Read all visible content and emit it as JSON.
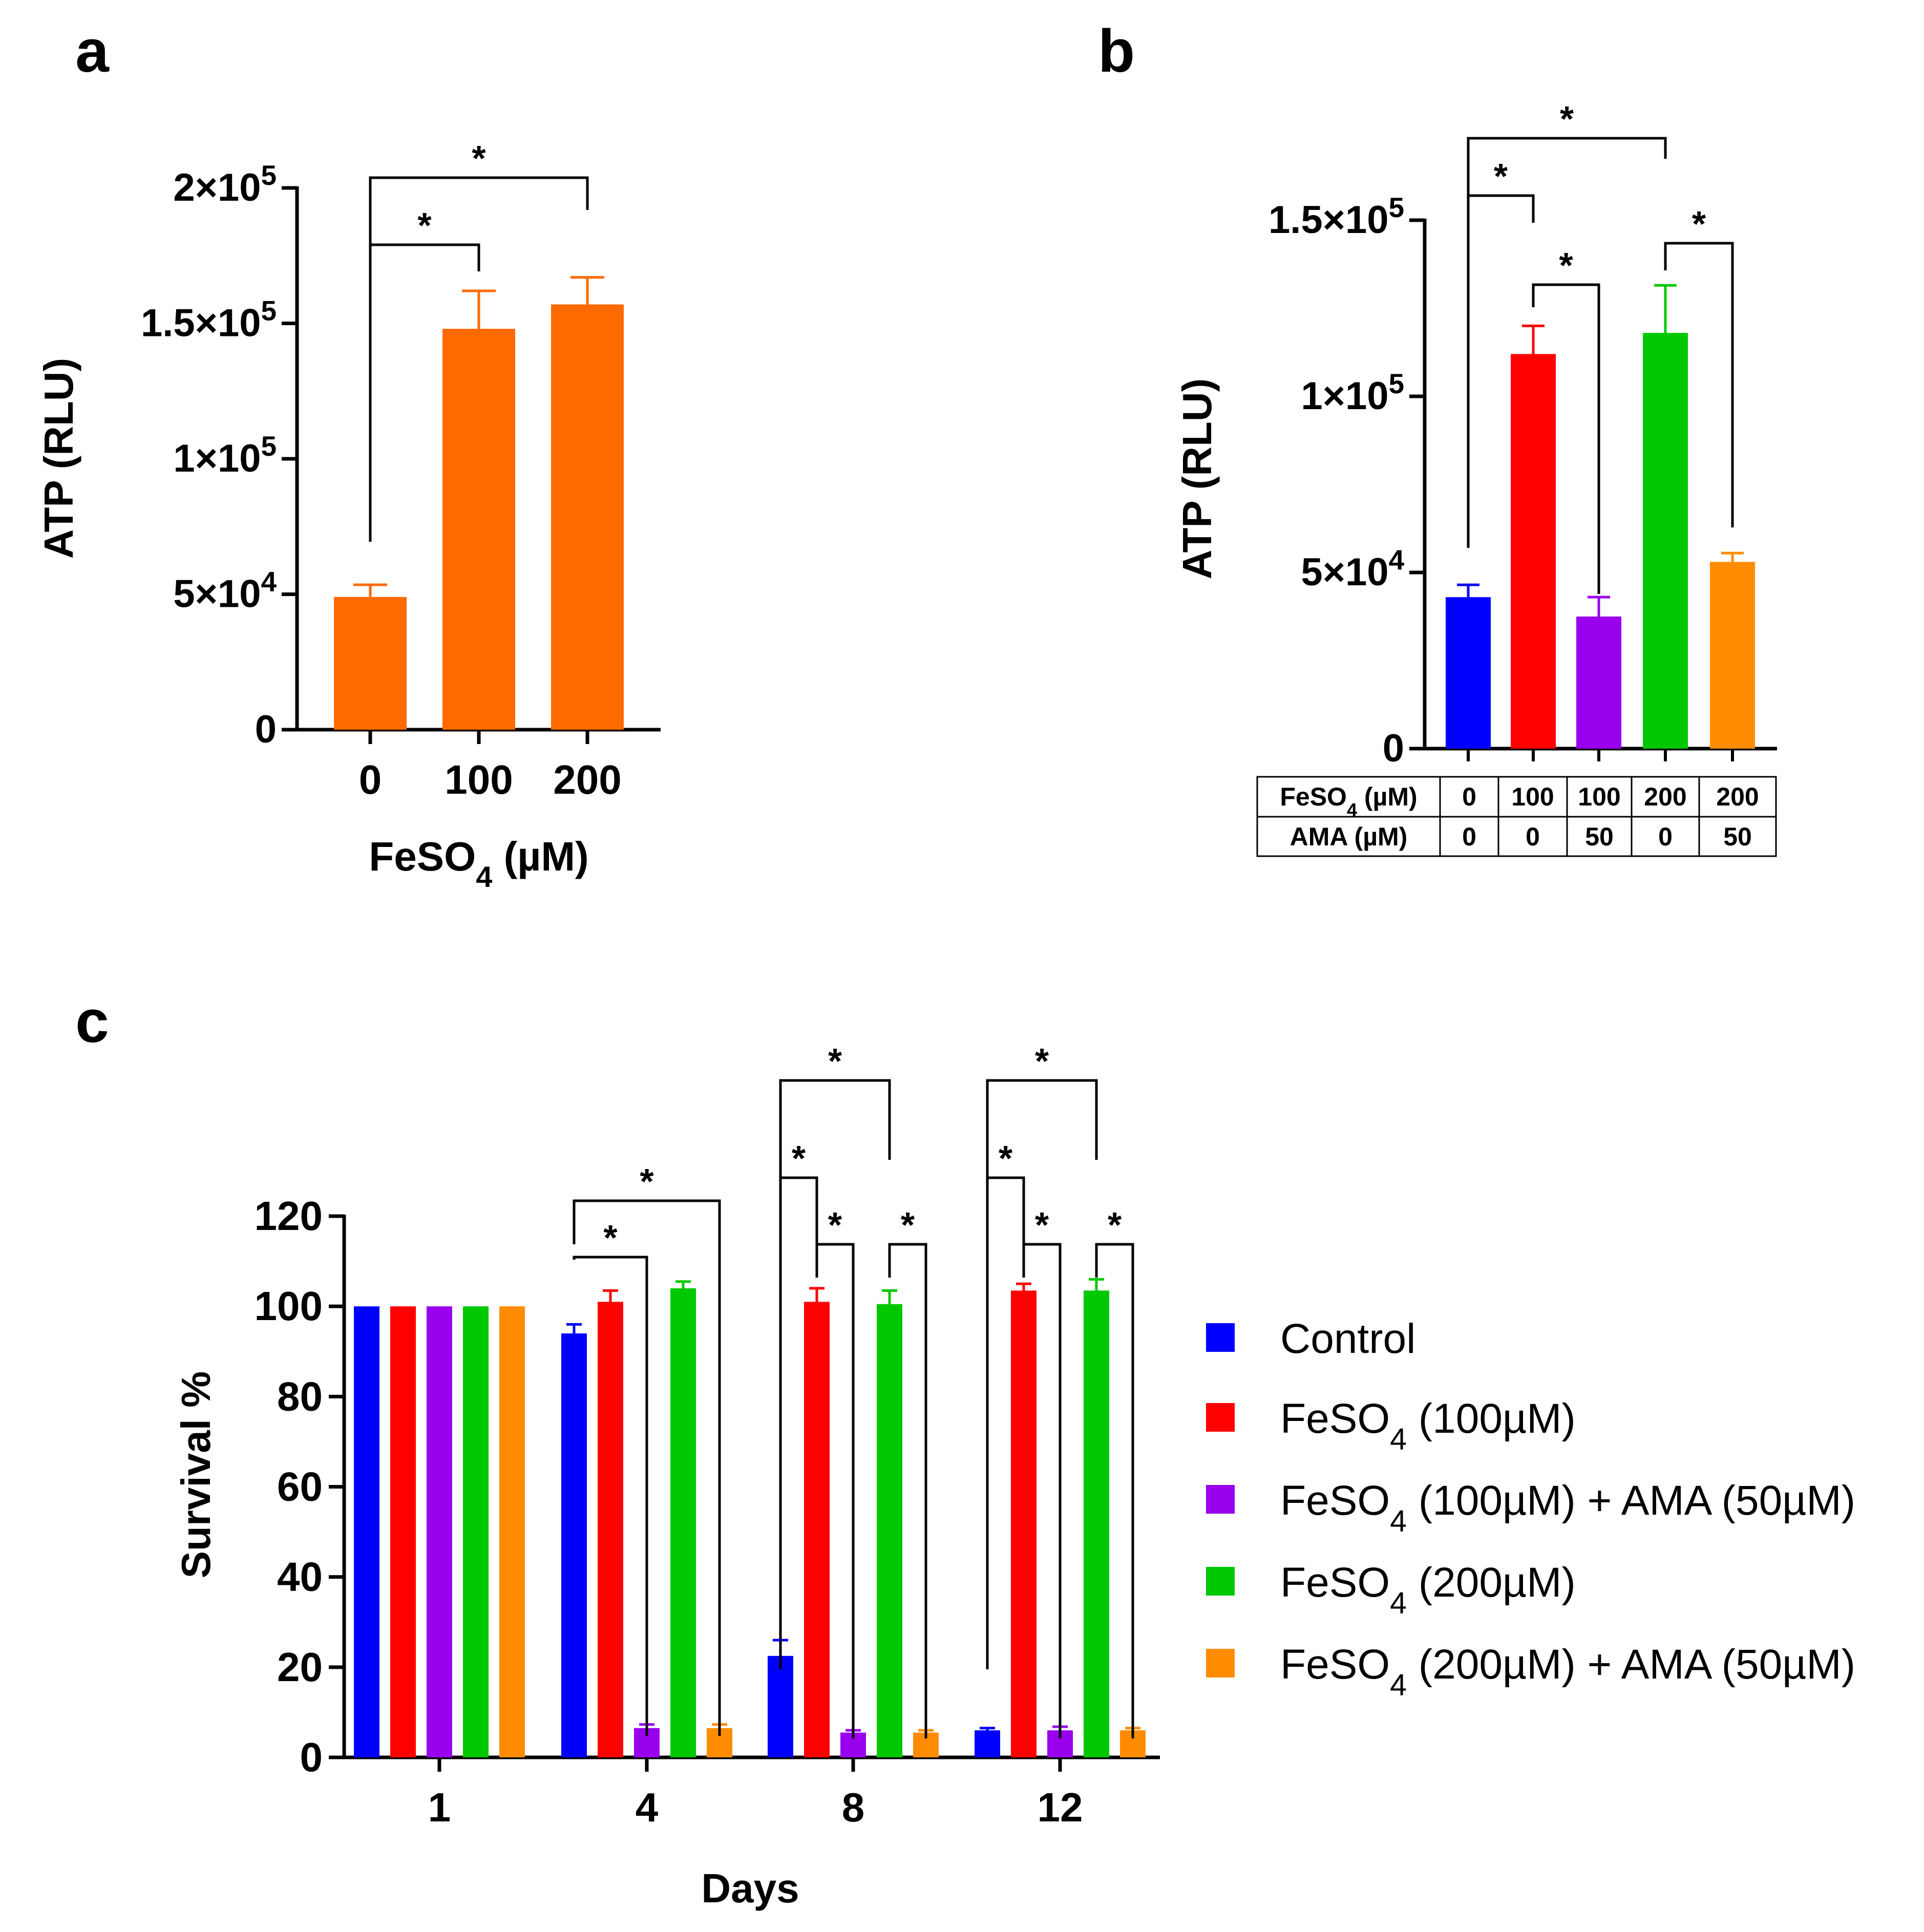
{
  "colors": {
    "orange_a": "#ff6a00",
    "blue": "#0000ff",
    "red": "#ff0000",
    "purple": "#9900ee",
    "green": "#00c800",
    "orange": "#ff8c00"
  },
  "panel_labels": [
    "a",
    "b",
    "c"
  ],
  "significance_marker": "*",
  "chart_data": [
    {
      "panel": "a",
      "type": "bar",
      "xlabel_main": "FeSO",
      "xlabel_sub": "4",
      "xlabel_tail": " (µM)",
      "ylabel": "ATP (RLU)",
      "ylim": [
        0,
        200000
      ],
      "yticks": [
        {
          "value": 0,
          "base": "0",
          "exp": ""
        },
        {
          "value": 50000,
          "base": "5×10",
          "exp": "4"
        },
        {
          "value": 100000,
          "base": "1×10",
          "exp": "5"
        },
        {
          "value": 150000,
          "base": "1.5×10",
          "exp": "5"
        },
        {
          "value": 200000,
          "base": "2×10",
          "exp": "5"
        }
      ],
      "categories": [
        "0",
        "100",
        "200"
      ],
      "values": [
        49000,
        148000,
        157000
      ],
      "errors": [
        4500,
        14000,
        10000
      ],
      "color": "#ff6a00",
      "significance": [
        {
          "from": 0,
          "to": 1,
          "label": "*"
        },
        {
          "from": 0,
          "to": 2,
          "label": "*"
        }
      ]
    },
    {
      "panel": "b",
      "type": "bar",
      "ylabel": "ATP (RLU)",
      "ylim": [
        0,
        150000
      ],
      "yticks": [
        {
          "value": 0,
          "base": "0",
          "exp": ""
        },
        {
          "value": 50000,
          "base": "5×10",
          "exp": "4"
        },
        {
          "value": 100000,
          "base": "1×10",
          "exp": "5"
        },
        {
          "value": 150000,
          "base": "1.5×10",
          "exp": "5"
        }
      ],
      "values": [
        43000,
        112000,
        37500,
        118000,
        53000
      ],
      "errors": [
        3500,
        8000,
        5500,
        13500,
        2500
      ],
      "colors": [
        "#0000ff",
        "#ff0000",
        "#9900ee",
        "#00c800",
        "#ff8c00"
      ],
      "condition_table": [
        {
          "label_main": "FeSO",
          "label_sub": "4",
          "label_tail": " (µM)",
          "values": [
            "0",
            "100",
            "100",
            "200",
            "200"
          ]
        },
        {
          "label_main": "AMA (µM)",
          "label_sub": "",
          "label_tail": "",
          "values": [
            "0",
            "0",
            "50",
            "0",
            "50"
          ]
        }
      ],
      "significance": [
        {
          "from": 0,
          "to": 1,
          "label": "*"
        },
        {
          "from": 1,
          "to": 2,
          "label": "*"
        },
        {
          "from": 0,
          "to": 3,
          "label": "*"
        },
        {
          "from": 3,
          "to": 4,
          "label": "*"
        }
      ]
    },
    {
      "panel": "c",
      "type": "bar",
      "xlabel": "Days",
      "ylabel": "Survival %",
      "ylim": [
        0,
        120
      ],
      "yticks": [
        0,
        20,
        40,
        60,
        80,
        100,
        120
      ],
      "categories": [
        "1",
        "4",
        "8",
        "12"
      ],
      "series": [
        {
          "name_main": "Control",
          "name_sub": "",
          "name_tail": "",
          "color": "#0000ff",
          "values": [
            100,
            94,
            22.5,
            6
          ],
          "errors": [
            0,
            2,
            3.5,
            0.5
          ]
        },
        {
          "name_main": "FeSO",
          "name_sub": "4",
          "name_tail": " (100µM)",
          "color": "#ff0000",
          "values": [
            100,
            101,
            101,
            103.5
          ],
          "errors": [
            0,
            2.5,
            3,
            1.5
          ]
        },
        {
          "name_main": "FeSO",
          "name_sub": "4",
          "name_tail": " (100µM) + AMA (50µM)",
          "color": "#9900ee",
          "values": [
            100,
            6.5,
            5.5,
            6
          ],
          "errors": [
            0,
            0.8,
            0.5,
            0.8
          ]
        },
        {
          "name_main": "FeSO",
          "name_sub": "4",
          "name_tail": " (200µM)",
          "color": "#00c800",
          "values": [
            100,
            104,
            100.5,
            103.5
          ],
          "errors": [
            0,
            1.5,
            3,
            2.5
          ]
        },
        {
          "name_main": "FeSO",
          "name_sub": "4",
          "name_tail": " (200µM) + AMA (50µM)",
          "color": "#ff8c00",
          "values": [
            100,
            6.5,
            5.5,
            6
          ],
          "errors": [
            0,
            0.8,
            0.5,
            0.5
          ]
        }
      ],
      "significance": [
        {
          "group": 1,
          "from": 0,
          "to": 2,
          "label": "*"
        },
        {
          "group": 1,
          "from": 0,
          "to": 4,
          "label": "*"
        },
        {
          "group": 2,
          "from": 0,
          "to": 1,
          "label": "*"
        },
        {
          "group": 2,
          "from": 1,
          "to": 2,
          "label": "*"
        },
        {
          "group": 2,
          "from": 3,
          "to": 4,
          "label": "*"
        },
        {
          "group": 2,
          "from": 0,
          "to": 3,
          "label": "*"
        },
        {
          "group": 3,
          "from": 0,
          "to": 1,
          "label": "*"
        },
        {
          "group": 3,
          "from": 1,
          "to": 2,
          "label": "*"
        },
        {
          "group": 3,
          "from": 3,
          "to": 4,
          "label": "*"
        },
        {
          "group": 3,
          "from": 0,
          "to": 3,
          "label": "*"
        }
      ]
    }
  ]
}
